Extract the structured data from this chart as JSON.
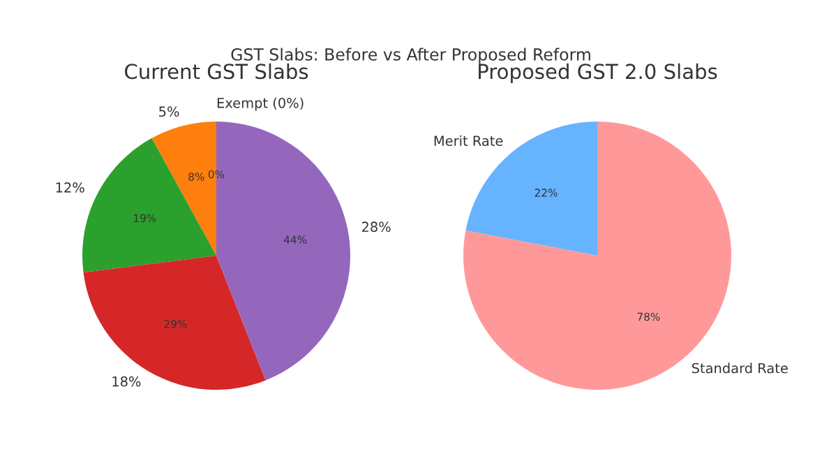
{
  "chart_data": [
    {
      "type": "pie",
      "title": "Current GST Slabs",
      "annotations": [
        "GST Slabs: Before vs After Proposed Reform"
      ],
      "categories": [
        "Exempt (0%)",
        "5%",
        "12%",
        "18%",
        "28%"
      ],
      "values": [
        0,
        8,
        19,
        29,
        44
      ],
      "value_labels": [
        "0%",
        "8%",
        "19%",
        "29%",
        "44%"
      ],
      "colors": [
        "#1f77b4",
        "#ff7f0e",
        "#2ca02c",
        "#d62728",
        "#9467bd"
      ]
    },
    {
      "type": "pie",
      "title": "Proposed GST 2.0 Slabs",
      "categories": [
        "Merit Rate",
        "Standard Rate"
      ],
      "values": [
        22,
        78
      ],
      "value_labels": [
        "22%",
        "78%"
      ],
      "colors": [
        "#66b3ff",
        "#ff9999"
      ]
    }
  ]
}
